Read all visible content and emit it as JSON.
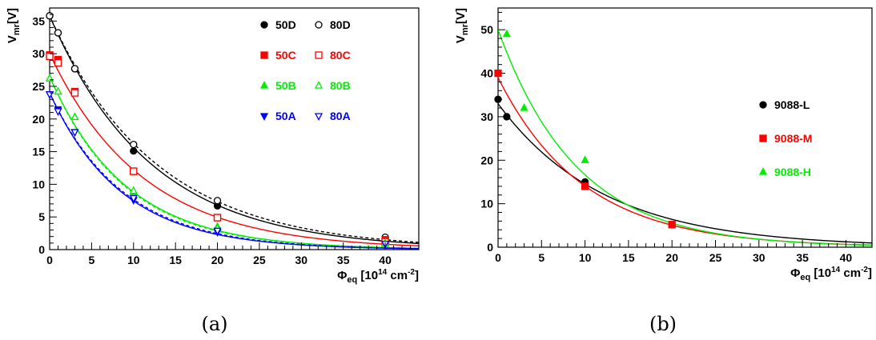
{
  "chart_data": [
    {
      "type": "scatter",
      "caption": "(a)",
      "xlabel": {
        "main": "Φ",
        "sub": "eq",
        "unit_pre": " [10",
        "unit_sup1": "14",
        "unit_mid": " cm",
        "unit_sup2": "-2",
        "unit_post": "]"
      },
      "ylabel": {
        "main": "V",
        "sub": "mr",
        "unit": "[V]"
      },
      "xlim": [
        0,
        44
      ],
      "ylim": [
        0,
        37
      ],
      "xticks": [
        0,
        5,
        10,
        15,
        20,
        25,
        30,
        35,
        40
      ],
      "yticks": [
        0,
        5,
        10,
        15,
        20,
        25,
        30,
        35
      ],
      "grid": false,
      "legend_position": "top-right",
      "series": [
        {
          "name": "50D",
          "color": "#000000",
          "marker": "circle",
          "filled": true,
          "x": [
            0,
            1,
            3,
            10,
            20,
            40
          ],
          "y": [
            35.8,
            33.2,
            27.7,
            15.1,
            6.7,
            1.8
          ],
          "fit": {
            "a": 35.8,
            "b": 0.083,
            "dashed": false
          }
        },
        {
          "name": "80D",
          "color": "#000000",
          "marker": "circle",
          "filled": false,
          "x": [
            0,
            1,
            3,
            10,
            20,
            40
          ],
          "y": [
            35.8,
            33.2,
            27.7,
            16.1,
            7.5,
            1.9
          ],
          "fit": {
            "a": 35.8,
            "b": 0.079,
            "dashed": true
          }
        },
        {
          "name": "50C",
          "color": "#ff0000",
          "marker": "square",
          "filled": true,
          "x": [
            0,
            1,
            3,
            10,
            20,
            40
          ],
          "y": [
            29.8,
            29.1,
            24.2,
            12.0,
            4.9,
            1.5
          ],
          "fit": {
            "a": 30.0,
            "b": 0.09,
            "dashed": false
          }
        },
        {
          "name": "80C",
          "color": "#ff0000",
          "marker": "square",
          "filled": false,
          "x": [
            0,
            1,
            3,
            10,
            20,
            40
          ],
          "y": [
            29.6,
            28.6,
            24.0,
            12.0,
            4.9,
            1.2
          ],
          "fit": null
        },
        {
          "name": "50B",
          "color": "#00ee00",
          "marker": "triangle-up",
          "filled": true,
          "x": [
            0,
            1,
            3,
            10,
            20,
            40
          ],
          "y": [
            26.2,
            24.2,
            20.3,
            8.8,
            3.5,
            1.0
          ],
          "fit": {
            "a": 26.5,
            "b": 0.11,
            "dashed": false
          }
        },
        {
          "name": "80B",
          "color": "#00ee00",
          "marker": "triangle-up",
          "filled": false,
          "x": [
            0,
            1,
            3,
            10,
            20,
            40
          ],
          "y": [
            26.2,
            24.2,
            20.3,
            9.0,
            3.3,
            0.9
          ],
          "fit": {
            "a": 26.5,
            "b": 0.112,
            "dashed": true
          }
        },
        {
          "name": "50A",
          "color": "#0000ff",
          "marker": "triangle-down",
          "filled": true,
          "x": [
            0,
            1,
            3,
            10,
            20,
            40
          ],
          "y": [
            23.8,
            21.5,
            18.0,
            7.6,
            2.7,
            0.9
          ],
          "fit": {
            "a": 24.0,
            "b": 0.117,
            "dashed": false
          }
        },
        {
          "name": "80A",
          "color": "#0000ff",
          "marker": "triangle-down",
          "filled": false,
          "x": [
            0,
            1,
            3,
            10,
            20,
            40
          ],
          "y": [
            23.8,
            21.2,
            18.0,
            7.9,
            2.9,
            0.9
          ],
          "fit": {
            "a": 24.0,
            "b": 0.114,
            "dashed": true
          }
        }
      ]
    },
    {
      "type": "scatter",
      "caption": "(b)",
      "xlabel": {
        "main": "Φ",
        "sub": "eq",
        "unit_pre": " [10",
        "unit_sup1": "14",
        "unit_mid": " cm",
        "unit_sup2": "-2",
        "unit_post": "]"
      },
      "ylabel": {
        "main": "V",
        "sub": "mr",
        "unit": "[V]"
      },
      "xlim": [
        0,
        43
      ],
      "ylim": [
        0,
        55
      ],
      "xticks": [
        0,
        5,
        10,
        15,
        20,
        25,
        30,
        35,
        40
      ],
      "yticks": [
        0,
        10,
        20,
        30,
        40,
        50
      ],
      "grid": false,
      "legend_position": "right",
      "series": [
        {
          "name": "9088-L",
          "color": "#000000",
          "marker": "circle",
          "filled": true,
          "x": [
            0,
            1,
            10,
            20
          ],
          "y": [
            34,
            30,
            15,
            5.2
          ],
          "fit": {
            "a": 33.0,
            "b": 0.082,
            "dashed": false
          }
        },
        {
          "name": "9088-M",
          "color": "#ff0000",
          "marker": "square",
          "filled": true,
          "x": [
            0,
            10,
            20
          ],
          "y": [
            40,
            14,
            5.2
          ],
          "fit": {
            "a": 39.0,
            "b": 0.102,
            "dashed": false
          }
        },
        {
          "name": "9088-H",
          "color": "#00ee00",
          "marker": "triangle-up",
          "filled": true,
          "x": [
            1,
            3,
            10
          ],
          "y": [
            49,
            32,
            20
          ],
          "fit": {
            "a": 50.0,
            "b": 0.11,
            "dashed": false
          }
        }
      ]
    }
  ]
}
